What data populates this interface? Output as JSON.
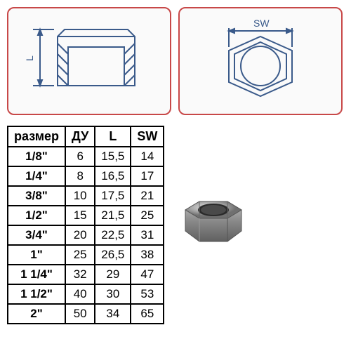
{
  "diagrams": {
    "left_label": "L",
    "right_label": "SW",
    "border_color": "#c84848",
    "drawing_color": "#3a5a8a"
  },
  "table": {
    "columns": [
      "размер",
      "ДУ",
      "L",
      "SW"
    ],
    "rows": [
      [
        "1/8\"",
        "6",
        "15,5",
        "14"
      ],
      [
        "1/4\"",
        "8",
        "16,5",
        "17"
      ],
      [
        "3/8\"",
        "10",
        "17,5",
        "21"
      ],
      [
        "1/2\"",
        "15",
        "21,5",
        "25"
      ],
      [
        "3/4\"",
        "20",
        "22,5",
        "31"
      ],
      [
        "1\"",
        "25",
        "26,5",
        "38"
      ],
      [
        "1 1/4\"",
        "32",
        "29",
        "47"
      ],
      [
        "1 1/2\"",
        "40",
        "30",
        "53"
      ],
      [
        "2\"",
        "50",
        "34",
        "65"
      ]
    ],
    "border_color": "#000000",
    "header_fontsize": 18,
    "cell_fontsize": 17
  },
  "product": {
    "description": "hex-cap-fitting"
  }
}
